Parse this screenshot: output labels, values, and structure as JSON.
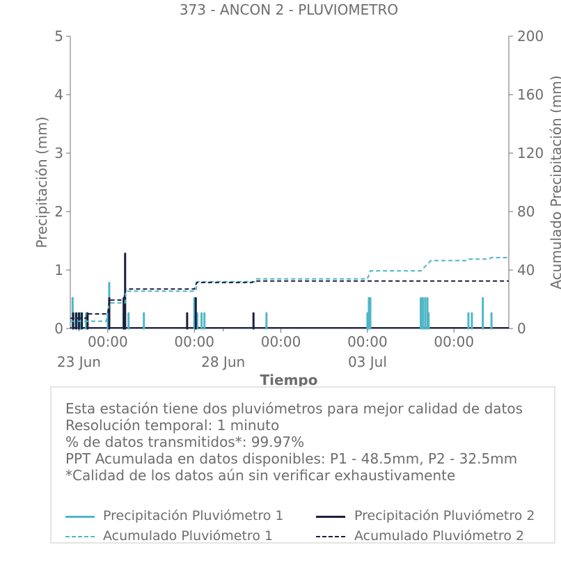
{
  "chart_data": {
    "type": "line",
    "title": "373 - ANCON 2 - PLUVIOMETRO",
    "xlabel": "Tiempo",
    "ylabel": "Precipitación (mm)",
    "y2label": "Acumulado Precipitación (mm)",
    "ylim": [
      0,
      5
    ],
    "y2lim": [
      0,
      200
    ],
    "yticks": [
      0,
      1,
      2,
      3,
      4,
      5
    ],
    "y2ticks": [
      0,
      40,
      80,
      120,
      160,
      200
    ],
    "xlim_days": [
      -0.3,
      14.9
    ],
    "xticks_major": [
      {
        "day": 1,
        "label": "00:00"
      },
      {
        "day": 4,
        "label": "00:00"
      },
      {
        "day": 7,
        "label": "00:00"
      },
      {
        "day": 10,
        "label": "00:00"
      },
      {
        "day": 13,
        "label": "00:00"
      }
    ],
    "xticks_dates": [
      {
        "day": 0,
        "label": "23 Jun"
      },
      {
        "day": 5,
        "label": "28 Jun"
      },
      {
        "day": 10,
        "label": "03 Jul"
      }
    ],
    "colors": {
      "p1": "#4fb6c6",
      "p2": "#1b1f3f",
      "axis": "#6d6d6d"
    },
    "series": [
      {
        "name": "Precipitación Pluviómetro 1",
        "axis": "left",
        "style": "solid",
        "points": [
          [
            -0.22,
            0.52
          ],
          [
            -0.08,
            0.26
          ],
          [
            0.05,
            0.26
          ],
          [
            0.25,
            0.26
          ],
          [
            1.0,
            0.26
          ],
          [
            1.05,
            0.78
          ],
          [
            1.55,
            0.26
          ],
          [
            1.6,
            0.52
          ],
          [
            1.72,
            0.26
          ],
          [
            2.25,
            0.26
          ],
          [
            4.0,
            0.52
          ],
          [
            4.1,
            0.26
          ],
          [
            4.25,
            0.26
          ],
          [
            4.35,
            0.26
          ],
          [
            6.5,
            0.26
          ],
          [
            10.0,
            0.26
          ],
          [
            10.05,
            0.52
          ],
          [
            10.1,
            0.52
          ],
          [
            11.85,
            0.52
          ],
          [
            11.92,
            0.52
          ],
          [
            12.0,
            0.52
          ],
          [
            12.08,
            0.52
          ],
          [
            12.12,
            0.26
          ],
          [
            13.5,
            0.26
          ],
          [
            13.62,
            0.26
          ],
          [
            14.0,
            0.52
          ],
          [
            14.3,
            0.26
          ]
        ]
      },
      {
        "name": "Precipitación Pluviómetro 2",
        "axis": "left",
        "style": "solid",
        "points": [
          [
            -0.2,
            0.26
          ],
          [
            -0.1,
            0.26
          ],
          [
            0.0,
            0.26
          ],
          [
            0.1,
            0.26
          ],
          [
            0.3,
            0.26
          ],
          [
            1.05,
            0.52
          ],
          [
            1.55,
            0.52
          ],
          [
            1.6,
            1.28
          ],
          [
            3.75,
            0.26
          ],
          [
            4.05,
            0.52
          ],
          [
            6.05,
            0.26
          ]
        ]
      },
      {
        "name": "Acumulado Pluviómetro 1",
        "axis": "right",
        "style": "dashed",
        "steps": [
          [
            -0.3,
            5
          ],
          [
            0.95,
            5
          ],
          [
            1.05,
            17.5
          ],
          [
            1.6,
            17.5
          ],
          [
            1.62,
            25.5
          ],
          [
            4.05,
            25.5
          ],
          [
            4.1,
            32
          ],
          [
            6.1,
            32
          ],
          [
            6.15,
            34
          ],
          [
            10.0,
            34
          ],
          [
            10.1,
            39.5
          ],
          [
            11.85,
            39.5
          ],
          [
            12.2,
            46.5
          ],
          [
            13.45,
            46.5
          ],
          [
            13.5,
            47.5
          ],
          [
            14.2,
            47.5
          ],
          [
            14.3,
            48.5
          ],
          [
            14.9,
            48.5
          ]
        ]
      },
      {
        "name": "Acumulado Pluviómetro 2",
        "axis": "right",
        "style": "dashed",
        "steps": [
          [
            -0.3,
            7
          ],
          [
            0.25,
            7
          ],
          [
            0.3,
            10
          ],
          [
            1.0,
            10
          ],
          [
            1.05,
            19.5
          ],
          [
            1.55,
            19.5
          ],
          [
            1.62,
            27
          ],
          [
            4.0,
            27
          ],
          [
            4.08,
            31.5
          ],
          [
            6.0,
            31.5
          ],
          [
            6.08,
            32.5
          ],
          [
            14.9,
            32.5
          ]
        ]
      }
    ]
  },
  "info": {
    "lines": [
      "Esta estación tiene dos pluviómetros para mejor calidad de datos",
      "Resolución temporal: 1 minuto",
      "% de datos transmitidos*: 99.97%",
      "PPT Acumulada en datos disponibles: P1 - 48.5mm, P2 - 32.5mm",
      "*Calidad de los datos aún sin verificar exhaustivamente"
    ]
  },
  "legend": {
    "items": [
      {
        "label": "Precipitación Pluviómetro 1",
        "color": "#4fb6c6",
        "style": "solid"
      },
      {
        "label": "Precipitación Pluviómetro 2",
        "color": "#1b1f3f",
        "style": "solid"
      },
      {
        "label": "Acumulado Pluviómetro 1",
        "color": "#4fb6c6",
        "style": "dashed"
      },
      {
        "label": "Acumulado Pluviómetro 2",
        "color": "#1b1f3f",
        "style": "dashed"
      }
    ]
  }
}
